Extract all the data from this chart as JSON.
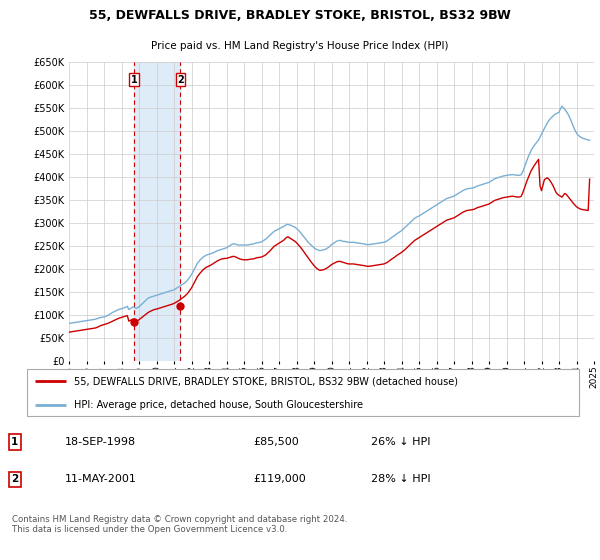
{
  "title": "55, DEWFALLS DRIVE, BRADLEY STOKE, BRISTOL, BS32 9BW",
  "subtitle": "Price paid vs. HM Land Registry's House Price Index (HPI)",
  "legend_line1": "55, DEWFALLS DRIVE, BRADLEY STOKE, BRISTOL, BS32 9BW (detached house)",
  "legend_line2": "HPI: Average price, detached house, South Gloucestershire",
  "transaction1_date": "18-SEP-1998",
  "transaction1_price": "£85,500",
  "transaction1_hpi": "26% ↓ HPI",
  "transaction2_date": "11-MAY-2001",
  "transaction2_price": "£119,000",
  "transaction2_hpi": "28% ↓ HPI",
  "footer": "Contains HM Land Registry data © Crown copyright and database right 2024.\nThis data is licensed under the Open Government Licence v3.0.",
  "red_color": "#cc0000",
  "blue_color": "#7aafd4",
  "background_color": "#ffffff",
  "grid_color": "#cccccc",
  "ylim": [
    0,
    650000
  ],
  "yticks": [
    0,
    50000,
    100000,
    150000,
    200000,
    250000,
    300000,
    350000,
    400000,
    450000,
    500000,
    550000,
    600000,
    650000
  ],
  "transaction1_x": 1998.72,
  "transaction1_y": 85500,
  "transaction2_x": 2001.37,
  "transaction2_y": 119000,
  "shade_x1": 1998.72,
  "shade_x2": 2001.37,
  "xlim": [
    1995.0,
    2025.0
  ],
  "xtick_years": [
    1995,
    1996,
    1997,
    1998,
    1999,
    2000,
    2001,
    2002,
    2003,
    2004,
    2005,
    2006,
    2007,
    2008,
    2009,
    2010,
    2011,
    2012,
    2013,
    2014,
    2015,
    2016,
    2017,
    2018,
    2019,
    2020,
    2021,
    2022,
    2023,
    2024,
    2025
  ],
  "hpi_months": [
    1995.0,
    1995.083,
    1995.167,
    1995.25,
    1995.333,
    1995.417,
    1995.5,
    1995.583,
    1995.667,
    1995.75,
    1995.833,
    1995.917,
    1996.0,
    1996.083,
    1996.167,
    1996.25,
    1996.333,
    1996.417,
    1996.5,
    1996.583,
    1996.667,
    1996.75,
    1996.833,
    1996.917,
    1997.0,
    1997.083,
    1997.167,
    1997.25,
    1997.333,
    1997.417,
    1997.5,
    1997.583,
    1997.667,
    1997.75,
    1997.833,
    1997.917,
    1998.0,
    1998.083,
    1998.167,
    1998.25,
    1998.333,
    1998.417,
    1998.5,
    1998.583,
    1998.667,
    1998.75,
    1998.833,
    1998.917,
    1999.0,
    1999.083,
    1999.167,
    1999.25,
    1999.333,
    1999.417,
    1999.5,
    1999.583,
    1999.667,
    1999.75,
    1999.833,
    1999.917,
    2000.0,
    2000.083,
    2000.167,
    2000.25,
    2000.333,
    2000.417,
    2000.5,
    2000.583,
    2000.667,
    2000.75,
    2000.833,
    2000.917,
    2001.0,
    2001.083,
    2001.167,
    2001.25,
    2001.333,
    2001.417,
    2001.5,
    2001.583,
    2001.667,
    2001.75,
    2001.833,
    2001.917,
    2002.0,
    2002.083,
    2002.167,
    2002.25,
    2002.333,
    2002.417,
    2002.5,
    2002.583,
    2002.667,
    2002.75,
    2002.833,
    2002.917,
    2003.0,
    2003.083,
    2003.167,
    2003.25,
    2003.333,
    2003.417,
    2003.5,
    2003.583,
    2003.667,
    2003.75,
    2003.833,
    2003.917,
    2004.0,
    2004.083,
    2004.167,
    2004.25,
    2004.333,
    2004.417,
    2004.5,
    2004.583,
    2004.667,
    2004.75,
    2004.833,
    2004.917,
    2005.0,
    2005.083,
    2005.167,
    2005.25,
    2005.333,
    2005.417,
    2005.5,
    2005.583,
    2005.667,
    2005.75,
    2005.833,
    2005.917,
    2006.0,
    2006.083,
    2006.167,
    2006.25,
    2006.333,
    2006.417,
    2006.5,
    2006.583,
    2006.667,
    2006.75,
    2006.833,
    2006.917,
    2007.0,
    2007.083,
    2007.167,
    2007.25,
    2007.333,
    2007.417,
    2007.5,
    2007.583,
    2007.667,
    2007.75,
    2007.833,
    2007.917,
    2008.0,
    2008.083,
    2008.167,
    2008.25,
    2008.333,
    2008.417,
    2008.5,
    2008.583,
    2008.667,
    2008.75,
    2008.833,
    2008.917,
    2009.0,
    2009.083,
    2009.167,
    2009.25,
    2009.333,
    2009.417,
    2009.5,
    2009.583,
    2009.667,
    2009.75,
    2009.833,
    2009.917,
    2010.0,
    2010.083,
    2010.167,
    2010.25,
    2010.333,
    2010.417,
    2010.5,
    2010.583,
    2010.667,
    2010.75,
    2010.833,
    2010.917,
    2011.0,
    2011.083,
    2011.167,
    2011.25,
    2011.333,
    2011.417,
    2011.5,
    2011.583,
    2011.667,
    2011.75,
    2011.833,
    2011.917,
    2012.0,
    2012.083,
    2012.167,
    2012.25,
    2012.333,
    2012.417,
    2012.5,
    2012.583,
    2012.667,
    2012.75,
    2012.833,
    2012.917,
    2013.0,
    2013.083,
    2013.167,
    2013.25,
    2013.333,
    2013.417,
    2013.5,
    2013.583,
    2013.667,
    2013.75,
    2013.833,
    2013.917,
    2014.0,
    2014.083,
    2014.167,
    2014.25,
    2014.333,
    2014.417,
    2014.5,
    2014.583,
    2014.667,
    2014.75,
    2014.833,
    2014.917,
    2015.0,
    2015.083,
    2015.167,
    2015.25,
    2015.333,
    2015.417,
    2015.5,
    2015.583,
    2015.667,
    2015.75,
    2015.833,
    2015.917,
    2016.0,
    2016.083,
    2016.167,
    2016.25,
    2016.333,
    2016.417,
    2016.5,
    2016.583,
    2016.667,
    2016.75,
    2016.833,
    2016.917,
    2017.0,
    2017.083,
    2017.167,
    2017.25,
    2017.333,
    2017.417,
    2017.5,
    2017.583,
    2017.667,
    2017.75,
    2017.833,
    2017.917,
    2018.0,
    2018.083,
    2018.167,
    2018.25,
    2018.333,
    2018.417,
    2018.5,
    2018.583,
    2018.667,
    2018.75,
    2018.833,
    2018.917,
    2019.0,
    2019.083,
    2019.167,
    2019.25,
    2019.333,
    2019.417,
    2019.5,
    2019.583,
    2019.667,
    2019.75,
    2019.833,
    2019.917,
    2020.0,
    2020.083,
    2020.167,
    2020.25,
    2020.333,
    2020.417,
    2020.5,
    2020.583,
    2020.667,
    2020.75,
    2020.833,
    2020.917,
    2021.0,
    2021.083,
    2021.167,
    2021.25,
    2021.333,
    2021.417,
    2021.5,
    2021.583,
    2021.667,
    2021.75,
    2021.833,
    2021.917,
    2022.0,
    2022.083,
    2022.167,
    2022.25,
    2022.333,
    2022.417,
    2022.5,
    2022.583,
    2022.667,
    2022.75,
    2022.833,
    2022.917,
    2023.0,
    2023.083,
    2023.167,
    2023.25,
    2023.333,
    2023.417,
    2023.5,
    2023.583,
    2023.667,
    2023.75,
    2023.833,
    2023.917,
    2024.0,
    2024.083,
    2024.167,
    2024.25,
    2024.333,
    2024.417,
    2024.5,
    2024.583,
    2024.667,
    2024.75
  ],
  "hpi_values": [
    82000,
    82500,
    83000,
    83500,
    84000,
    84500,
    85000,
    85500,
    86000,
    86500,
    87000,
    87500,
    88000,
    88500,
    89000,
    89500,
    90000,
    90500,
    91000,
    92000,
    93000,
    94500,
    95000,
    95500,
    96000,
    97000,
    98500,
    100000,
    102000,
    104000,
    106000,
    107500,
    109000,
    110500,
    112000,
    113000,
    114000,
    115000,
    116000,
    117500,
    119000,
    112000,
    114000,
    116000,
    118000,
    116500,
    115000,
    116000,
    118000,
    121000,
    124000,
    127000,
    130000,
    133000,
    136000,
    138000,
    139000,
    140000,
    141000,
    142000,
    143000,
    144000,
    145000,
    146000,
    147000,
    148000,
    149000,
    150000,
    151000,
    152000,
    153000,
    154000,
    155000,
    157000,
    159000,
    161000,
    163000,
    165000,
    167000,
    169000,
    172000,
    175000,
    179000,
    183000,
    188000,
    194000,
    200000,
    206000,
    212000,
    216000,
    220000,
    223000,
    226000,
    228000,
    230000,
    231000,
    232000,
    233000,
    234000,
    235500,
    237000,
    238500,
    240000,
    241000,
    242000,
    243000,
    244000,
    245000,
    246000,
    248000,
    250000,
    252000,
    254000,
    255000,
    254000,
    253000,
    252000,
    252000,
    252000,
    252000,
    252000,
    252000,
    252000,
    252500,
    253000,
    253500,
    254000,
    255000,
    256000,
    257000,
    257500,
    258000,
    259000,
    261000,
    263000,
    265000,
    268000,
    271000,
    274000,
    277000,
    280000,
    282500,
    284000,
    285500,
    287000,
    289000,
    290500,
    292000,
    294000,
    296000,
    297000,
    296000,
    295000,
    293500,
    292000,
    290500,
    288000,
    285000,
    282000,
    278000,
    274000,
    270000,
    266000,
    262000,
    258000,
    255000,
    252000,
    249000,
    246000,
    244000,
    242000,
    241000,
    240000,
    240500,
    241000,
    242000,
    243000,
    245000,
    247000,
    250000,
    253000,
    255000,
    257000,
    259000,
    261000,
    262000,
    262000,
    261000,
    260000,
    260000,
    259000,
    258500,
    258000,
    258000,
    258000,
    258000,
    257500,
    257000,
    256500,
    256000,
    255500,
    255000,
    254500,
    254000,
    253000,
    253000,
    253000,
    253500,
    254000,
    254500,
    255000,
    255500,
    256000,
    256500,
    257000,
    257500,
    258000,
    259000,
    261000,
    263000,
    265500,
    268000,
    270000,
    272000,
    274500,
    277000,
    279000,
    281000,
    283000,
    286000,
    289000,
    292000,
    295000,
    298000,
    301000,
    304000,
    307000,
    310000,
    312000,
    313500,
    315000,
    317000,
    319000,
    321000,
    323000,
    325000,
    327000,
    329000,
    331000,
    333000,
    335000,
    337000,
    339000,
    341000,
    343000,
    345000,
    347000,
    349000,
    351000,
    353000,
    354000,
    355000,
    356000,
    357000,
    358000,
    360000,
    362000,
    364000,
    366000,
    368000,
    370000,
    371500,
    373000,
    374000,
    374500,
    375000,
    375500,
    376000,
    377000,
    378500,
    380000,
    381000,
    382000,
    383000,
    384000,
    385000,
    386000,
    387000,
    388000,
    390000,
    392000,
    394000,
    396000,
    397000,
    398000,
    399000,
    400000,
    401000,
    402000,
    402500,
    403000,
    403500,
    404000,
    404500,
    405000,
    404500,
    404000,
    403500,
    403000,
    403500,
    404500,
    410000,
    418000,
    427000,
    436000,
    444000,
    451000,
    458000,
    463000,
    468000,
    472000,
    476000,
    480000,
    486000,
    493000,
    499000,
    505000,
    511000,
    517000,
    522000,
    526000,
    529000,
    532000,
    535000,
    537000,
    538500,
    540000,
    548000,
    553000,
    550000,
    546000,
    542000,
    537000,
    531000,
    524000,
    516000,
    508000,
    501000,
    495000,
    491000,
    488000,
    486000,
    484000,
    483000,
    482000,
    481000,
    480000,
    479500
  ],
  "red_values": [
    63000,
    63500,
    64000,
    64500,
    65000,
    65500,
    66000,
    66500,
    67000,
    67500,
    68000,
    68500,
    69000,
    69500,
    70000,
    70500,
    71000,
    71500,
    72000,
    73000,
    74500,
    76000,
    77500,
    78500,
    79500,
    80500,
    81500,
    82500,
    84000,
    85500,
    87000,
    88500,
    90000,
    91500,
    93000,
    94000,
    95000,
    96000,
    97000,
    98000,
    99000,
    87000,
    88500,
    90000,
    91500,
    88500,
    87000,
    88000,
    90000,
    92500,
    95000,
    97500,
    100000,
    102500,
    105000,
    107000,
    108500,
    110000,
    111500,
    112500,
    113000,
    114000,
    115000,
    116000,
    117000,
    118000,
    119000,
    120000,
    121000,
    122000,
    123000,
    124000,
    125500,
    127000,
    129000,
    131000,
    133000,
    135500,
    138000,
    140000,
    143000,
    146000,
    150000,
    154500,
    159000,
    165000,
    171000,
    177000,
    183000,
    187500,
    191500,
    195000,
    198500,
    201000,
    203500,
    205000,
    206500,
    208000,
    210000,
    212000,
    214000,
    216000,
    218000,
    219500,
    221000,
    222000,
    222500,
    223000,
    223000,
    224000,
    225000,
    226000,
    227000,
    227500,
    226500,
    225000,
    223500,
    222000,
    221000,
    220500,
    220000,
    220000,
    220000,
    220500,
    221000,
    221500,
    222000,
    222500,
    223500,
    224500,
    225000,
    225500,
    226000,
    227500,
    229000,
    231000,
    234000,
    237000,
    240000,
    243500,
    247000,
    250000,
    252000,
    254000,
    256000,
    258000,
    260000,
    262000,
    265000,
    268000,
    270000,
    268000,
    266000,
    264000,
    262000,
    260000,
    257000,
    253500,
    250000,
    246000,
    242000,
    237500,
    233000,
    228500,
    224000,
    219500,
    215500,
    211500,
    207500,
    204000,
    201000,
    199000,
    197000,
    197500,
    198000,
    199000,
    200500,
    202500,
    204500,
    207000,
    209500,
    211500,
    213000,
    214500,
    216000,
    216500,
    216500,
    215500,
    214500,
    213500,
    212500,
    211500,
    211000,
    211000,
    211000,
    211000,
    210500,
    210000,
    209500,
    209000,
    208500,
    208000,
    207500,
    207000,
    206000,
    206000,
    206000,
    206500,
    207000,
    207500,
    208000,
    208500,
    209000,
    209500,
    210000,
    210500,
    211000,
    212500,
    214000,
    216000,
    218500,
    221000,
    223000,
    225000,
    227500,
    230000,
    232000,
    234000,
    236000,
    238500,
    241000,
    244000,
    247000,
    250000,
    253000,
    256000,
    259000,
    262000,
    264000,
    266000,
    268000,
    270000,
    272000,
    274000,
    276000,
    278000,
    280000,
    282000,
    284000,
    286000,
    288000,
    290000,
    292000,
    294000,
    296000,
    298000,
    300000,
    302000,
    304000,
    306000,
    307000,
    308000,
    309000,
    310000,
    311000,
    313000,
    315000,
    317000,
    319000,
    321000,
    323000,
    324500,
    326000,
    327000,
    327500,
    328000,
    328500,
    329000,
    330000,
    331500,
    333000,
    334000,
    335000,
    336000,
    337000,
    338000,
    339000,
    340000,
    341000,
    343000,
    345000,
    347000,
    349000,
    350000,
    351000,
    352000,
    353000,
    354000,
    355000,
    355500,
    356000,
    356500,
    357000,
    357500,
    358000,
    357500,
    357000,
    356500,
    356000,
    356500,
    357500,
    364000,
    373000,
    382000,
    391000,
    399000,
    406500,
    414000,
    419000,
    424500,
    429000,
    433500,
    438000,
    380000,
    370000,
    382000,
    394000,
    396000,
    398000,
    395000,
    391000,
    386000,
    380000,
    373000,
    366000,
    362000,
    360000,
    358000,
    356000,
    360000,
    364000,
    362000,
    358000,
    354000,
    350000,
    346000,
    342000,
    338500,
    335000,
    333000,
    331000,
    330000,
    329000,
    328500,
    328000,
    327500,
    327000,
    395000
  ]
}
